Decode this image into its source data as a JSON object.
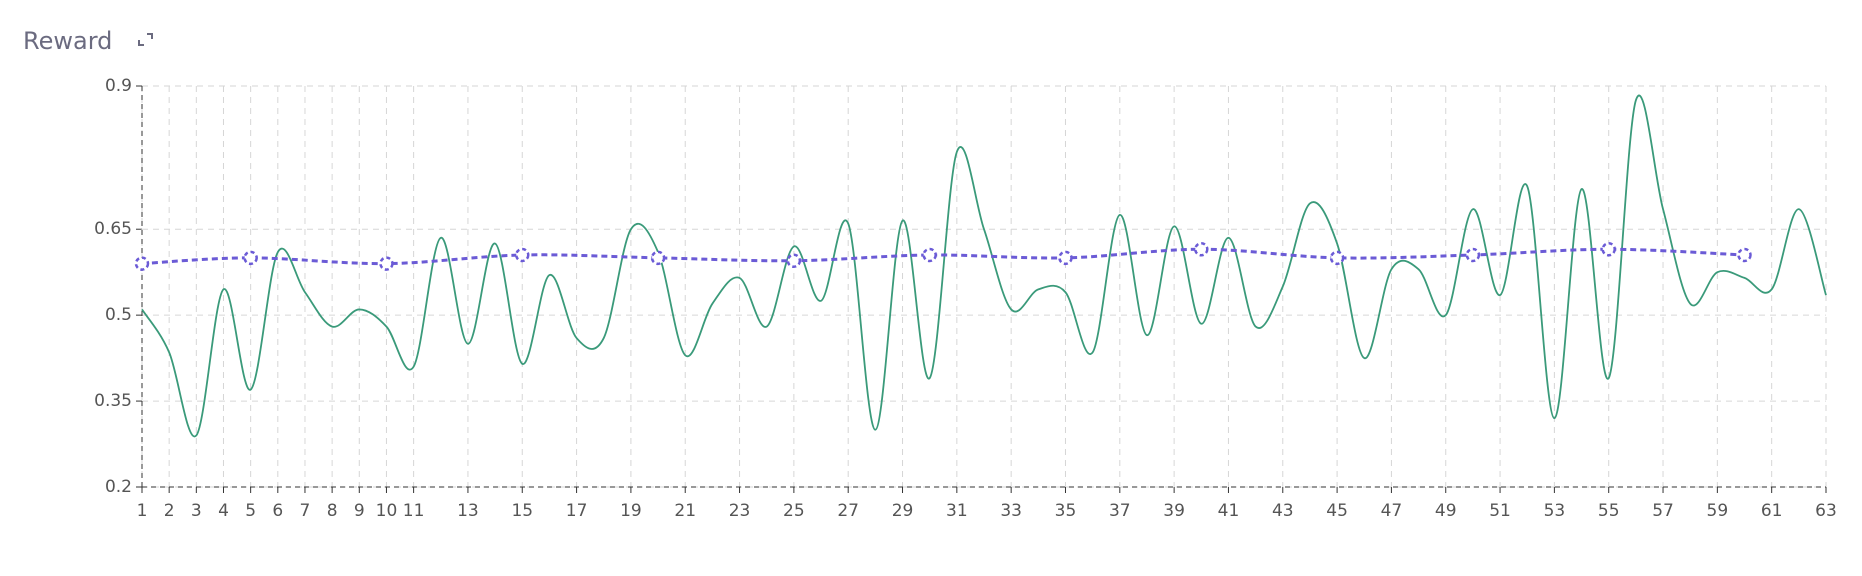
{
  "chart_data": {
    "type": "line",
    "title": "Reward",
    "xlim": [
      1,
      63
    ],
    "xticks": [
      1,
      2,
      3,
      4,
      5,
      6,
      7,
      8,
      9,
      10,
      11,
      13,
      15,
      17,
      19,
      21,
      23,
      25,
      27,
      29,
      31,
      33,
      35,
      37,
      39,
      41,
      43,
      45,
      47,
      49,
      51,
      53,
      55,
      57,
      59,
      61,
      63
    ],
    "ylim": [
      0.2,
      0.9
    ],
    "yticks": [
      0.2,
      0.35,
      0.5,
      0.65,
      0.9
    ],
    "grid": true,
    "series": [
      {
        "color": "#3a9a7a",
        "smooth": true,
        "dashed": false,
        "markers": false,
        "x": [
          1,
          2,
          3,
          4,
          5,
          6,
          7,
          8,
          9,
          10,
          11,
          12,
          13,
          14,
          15,
          16,
          17,
          18,
          19,
          20,
          21,
          22,
          23,
          24,
          25,
          26,
          27,
          28,
          29,
          30,
          31,
          32,
          33,
          34,
          35,
          36,
          37,
          38,
          39,
          40,
          41,
          42,
          43,
          44,
          45,
          46,
          47,
          48,
          49,
          50,
          51,
          52,
          53,
          54,
          55,
          56,
          57,
          58,
          59,
          60,
          61,
          62,
          63
        ],
        "values": [
          0.51,
          0.435,
          0.29,
          0.545,
          0.37,
          0.61,
          0.54,
          0.48,
          0.51,
          0.48,
          0.41,
          0.635,
          0.45,
          0.625,
          0.415,
          0.57,
          0.46,
          0.46,
          0.65,
          0.61,
          0.43,
          0.52,
          0.565,
          0.48,
          0.62,
          0.525,
          0.66,
          0.3,
          0.665,
          0.39,
          0.785,
          0.65,
          0.51,
          0.545,
          0.54,
          0.435,
          0.675,
          0.465,
          0.655,
          0.485,
          0.635,
          0.48,
          0.55,
          0.695,
          0.625,
          0.425,
          0.58,
          0.58,
          0.5,
          0.685,
          0.535,
          0.725,
          0.32,
          0.72,
          0.39,
          0.875,
          0.685,
          0.52,
          0.575,
          0.565,
          0.545,
          0.685,
          0.535
        ]
      },
      {
        "color": "#6b5bd6",
        "smooth": true,
        "dashed": true,
        "markers": true,
        "x": [
          1,
          5,
          10,
          15,
          20,
          25,
          30,
          35,
          40,
          45,
          50,
          55,
          60
        ],
        "values": [
          0.59,
          0.6,
          0.59,
          0.605,
          0.6,
          0.595,
          0.605,
          0.6,
          0.615,
          0.6,
          0.605,
          0.615,
          0.605
        ]
      }
    ]
  }
}
